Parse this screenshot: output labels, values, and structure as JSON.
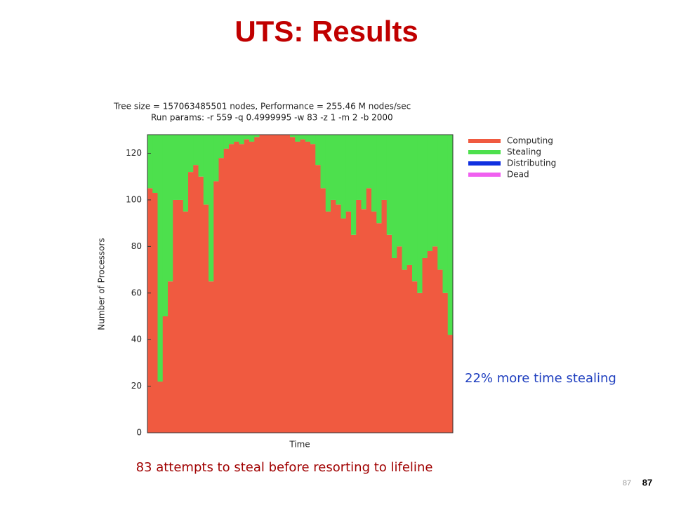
{
  "slide": {
    "title": "UTS: Results",
    "annotations": [
      "22% more time stealing",
      "83 attempts to steal before resorting to lifeline"
    ],
    "page_numbers": [
      "87",
      "87"
    ]
  },
  "chart_data": {
    "type": "bar",
    "stacked": true,
    "title": "Tree size = 157063485501 nodes, Performance = 255.46 M nodes/sec",
    "subtitle": "Run params:  -r 559 -q 0.4999995 -w 83 -z 1 -m 2 -b 2000",
    "xlabel": "Time",
    "ylabel": "Number of Processors",
    "categories": [
      null,
      null,
      null,
      null,
      null,
      null,
      null,
      null,
      null,
      null,
      null,
      null,
      null,
      null,
      null,
      null,
      null,
      null,
      null,
      null,
      null,
      null,
      null,
      null,
      null,
      null,
      null,
      null,
      null,
      null,
      null,
      null,
      null,
      null,
      null,
      null,
      null,
      null,
      null,
      null,
      null,
      null,
      null,
      null,
      null,
      null,
      null,
      null,
      null,
      null,
      null,
      null,
      null,
      null,
      null,
      null,
      null,
      null,
      null,
      null
    ],
    "series": [
      {
        "name": "Computing",
        "color": "#f05a40",
        "values": [
          105,
          103,
          22,
          50,
          65,
          100,
          100,
          95,
          112,
          115,
          110,
          98,
          65,
          108,
          118,
          122,
          124,
          125,
          124,
          126,
          125,
          127,
          128,
          128,
          128,
          128,
          128,
          128,
          127,
          125,
          126,
          125,
          124,
          115,
          105,
          95,
          100,
          98,
          92,
          95,
          85,
          100,
          96,
          105,
          95,
          90,
          100,
          85,
          75,
          80,
          70,
          72,
          65,
          60,
          75,
          78,
          80,
          70,
          60,
          42
        ]
      },
      {
        "name": "Stealing",
        "color": "#4de04d",
        "values": [
          23,
          25,
          106,
          78,
          63,
          28,
          28,
          33,
          16,
          13,
          18,
          30,
          63,
          20,
          10,
          6,
          4,
          3,
          4,
          2,
          3,
          1,
          0,
          0,
          0,
          0,
          0,
          0,
          1,
          3,
          2,
          3,
          4,
          13,
          23,
          33,
          28,
          30,
          36,
          33,
          43,
          28,
          32,
          23,
          33,
          38,
          28,
          43,
          53,
          48,
          58,
          56,
          63,
          68,
          53,
          50,
          48,
          58,
          68,
          86
        ]
      },
      {
        "name": "Distributing",
        "color": "#1030e0",
        "values": [
          0,
          0,
          0,
          0,
          0,
          0,
          0,
          0,
          0,
          0,
          0,
          0,
          0,
          0,
          0,
          0,
          0,
          0,
          0,
          0,
          0,
          0,
          0,
          0,
          0,
          0,
          0,
          0,
          0,
          0,
          0,
          0,
          0,
          0,
          0,
          0,
          0,
          0,
          0,
          0,
          0,
          0,
          0,
          0,
          0,
          0,
          0,
          0,
          0,
          0,
          0,
          0,
          0,
          0,
          0,
          0,
          0,
          0,
          0,
          0
        ]
      },
      {
        "name": "Dead",
        "color": "#f060f0",
        "values": [
          0,
          0,
          0,
          0,
          0,
          0,
          0,
          0,
          0,
          0,
          0,
          0,
          0,
          0,
          0,
          0,
          0,
          0,
          0,
          0,
          0,
          0,
          0,
          0,
          0,
          0,
          0,
          0,
          0,
          0,
          0,
          0,
          0,
          0,
          0,
          0,
          0,
          0,
          0,
          0,
          0,
          0,
          0,
          0,
          0,
          0,
          0,
          0,
          0,
          0,
          0,
          0,
          0,
          0,
          0,
          0,
          0,
          0,
          0,
          0
        ]
      }
    ],
    "ylim": [
      0,
      128
    ],
    "yticks": [
      0,
      20,
      40,
      60,
      80,
      100,
      120
    ],
    "legend": "right"
  }
}
